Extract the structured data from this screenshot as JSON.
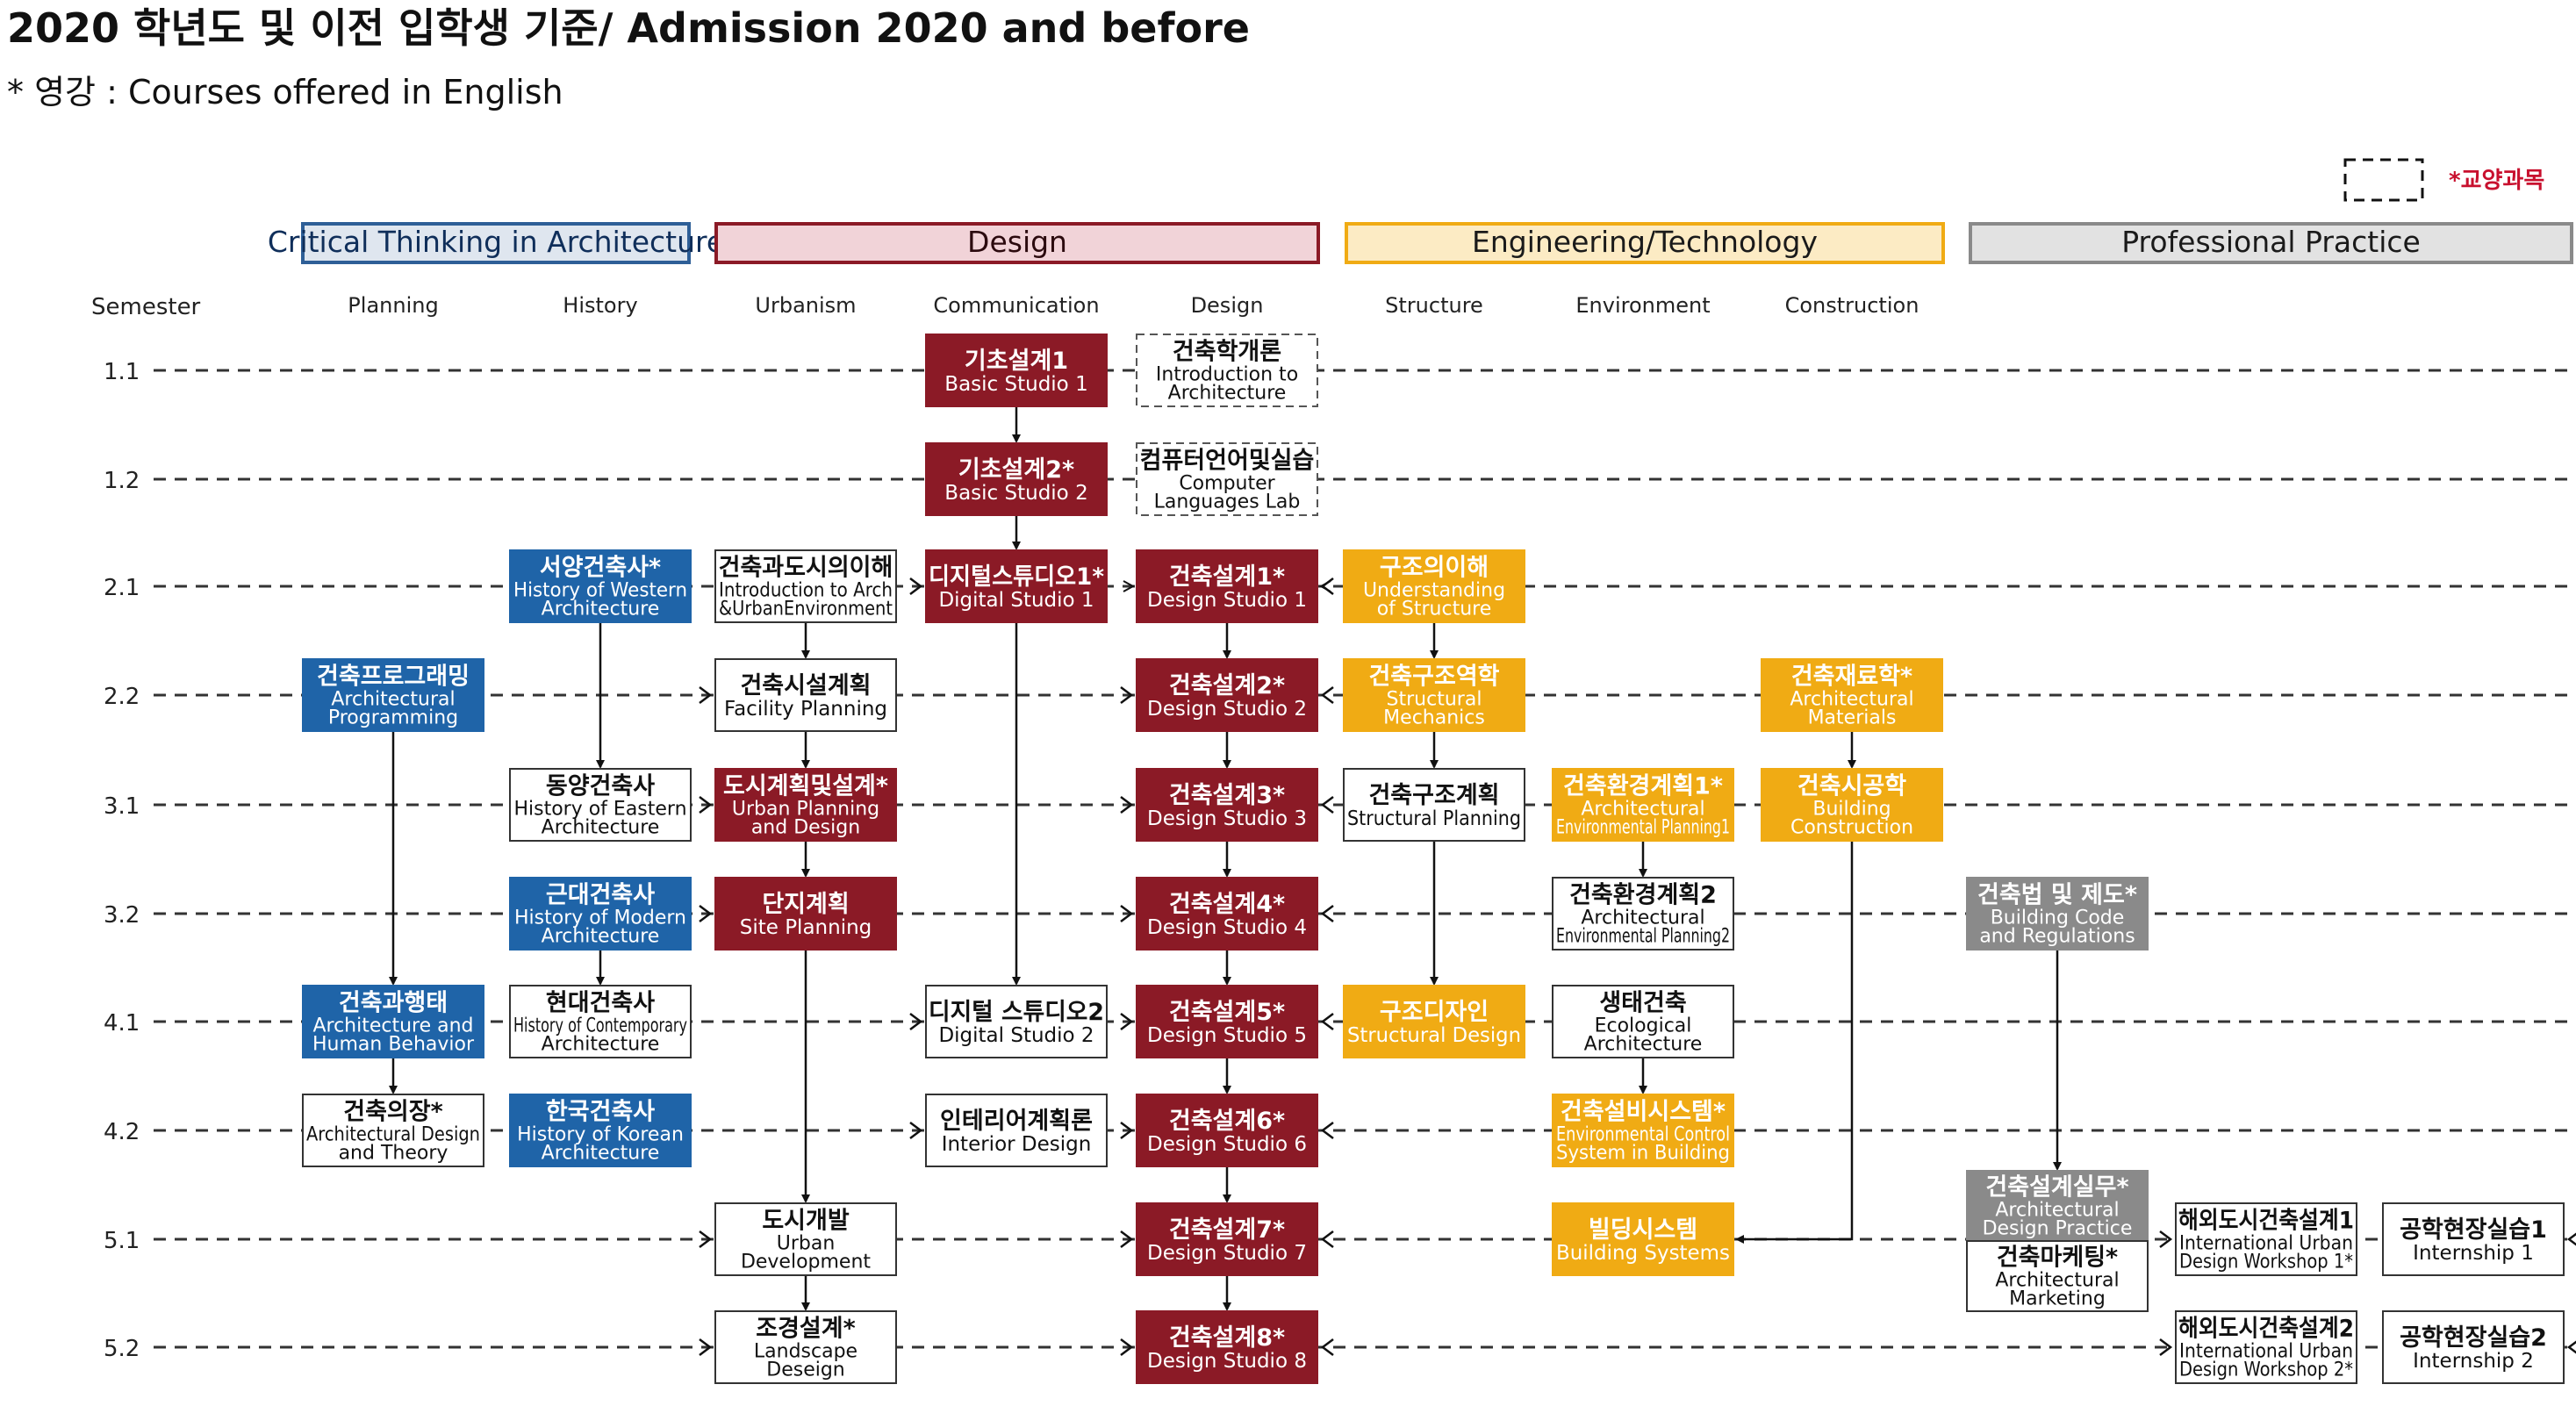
{
  "title": "2020 학년도 및 이전 입학생 기준/ Admission 2020 and before",
  "subtitle": "* 영강 : Courses offered in English",
  "legend": {
    "label": "*교양과목"
  },
  "colors": {
    "blue": "#1f64a8",
    "red": "#8b1a26",
    "yellow": "#f0ab14",
    "gray": "#8a8a8a"
  },
  "semester_label": "Semester",
  "categories": [
    {
      "label": "Critical Thinking in Architecture",
      "style": "blue"
    },
    {
      "label": "Design",
      "style": "red"
    },
    {
      "label": "Engineering/Technology",
      "style": "yellow"
    },
    {
      "label": "Professional Practice",
      "style": "gray"
    }
  ],
  "columns": [
    {
      "key": "planning",
      "label": "Planning"
    },
    {
      "key": "history",
      "label": "History"
    },
    {
      "key": "urbanism",
      "label": "Urbanism"
    },
    {
      "key": "communication",
      "label": "Communication"
    },
    {
      "key": "design",
      "label": "Design"
    },
    {
      "key": "structure",
      "label": "Structure"
    },
    {
      "key": "environment",
      "label": "Environment"
    },
    {
      "key": "construction",
      "label": "Construction"
    },
    {
      "key": "practice",
      "label": ""
    },
    {
      "key": "intl",
      "label": ""
    },
    {
      "key": "intern",
      "label": ""
    }
  ],
  "semesters": [
    "1.1",
    "1.2",
    "2.1",
    "2.2",
    "3.1",
    "3.2",
    "4.1",
    "4.2",
    "5.1",
    "5.2"
  ],
  "courses": [
    {
      "id": "basic1",
      "col": "communication",
      "sem": "1.1",
      "style": "red",
      "ko": "기초설계1",
      "en": [
        "Basic Studio 1"
      ]
    },
    {
      "id": "intro",
      "col": "design",
      "sem": "1.1",
      "style": "dashed",
      "ko": "건축학개론",
      "en": [
        "Introduction to",
        "Architecture"
      ]
    },
    {
      "id": "basic2",
      "col": "communication",
      "sem": "1.2",
      "style": "red",
      "ko": "기초설계2*",
      "en": [
        "Basic Studio 2"
      ]
    },
    {
      "id": "comp",
      "col": "design",
      "sem": "1.2",
      "style": "dashed",
      "ko": "컴퓨터언어및실습",
      "en": [
        "Computer",
        "Languages Lab"
      ]
    },
    {
      "id": "western",
      "col": "history",
      "sem": "2.1",
      "style": "blue",
      "ko": "서양건축사*",
      "en": [
        "History of Western",
        "Architecture"
      ]
    },
    {
      "id": "intro_urban",
      "col": "urbanism",
      "sem": "2.1",
      "style": "white",
      "ko": "건축과도시의이해",
      "en": [
        "Introduction to Arch",
        "&UrbanEnvironment"
      ]
    },
    {
      "id": "digital1",
      "col": "communication",
      "sem": "2.1",
      "style": "red",
      "ko": "디지털스튜디오1*",
      "en": [
        "Digital Studio 1"
      ]
    },
    {
      "id": "design1",
      "col": "design",
      "sem": "2.1",
      "style": "red",
      "ko": "건축설계1*",
      "en": [
        "Design Studio 1"
      ]
    },
    {
      "id": "under_struct",
      "col": "structure",
      "sem": "2.1",
      "style": "yellow",
      "ko": "구조의이해",
      "en": [
        "Understanding",
        "of Structure"
      ]
    },
    {
      "id": "programming",
      "col": "planning",
      "sem": "2.2",
      "style": "blue",
      "ko": "건축프로그래밍",
      "en": [
        "Architectural",
        "Programming"
      ]
    },
    {
      "id": "facility",
      "col": "urbanism",
      "sem": "2.2",
      "style": "white",
      "ko": "건축시설계획",
      "en": [
        "Facility Planning"
      ]
    },
    {
      "id": "design2",
      "col": "design",
      "sem": "2.2",
      "style": "red",
      "ko": "건축설계2*",
      "en": [
        "Design Studio 2"
      ]
    },
    {
      "id": "struct_mech",
      "col": "structure",
      "sem": "2.2",
      "style": "yellow",
      "ko": "건축구조역학",
      "en": [
        "Structural",
        "Mechanics"
      ]
    },
    {
      "id": "materials",
      "col": "construction",
      "sem": "2.2",
      "style": "yellow",
      "ko": "건축재료학*",
      "en": [
        "Architectural",
        "Materials"
      ]
    },
    {
      "id": "eastern",
      "col": "history",
      "sem": "3.1",
      "style": "white",
      "ko": "동양건축사",
      "en": [
        "History of Eastern",
        "Architecture"
      ]
    },
    {
      "id": "urban_plan",
      "col": "urbanism",
      "sem": "3.1",
      "style": "red",
      "ko": "도시계획및설계*",
      "en": [
        "Urban Planning",
        "and Design"
      ]
    },
    {
      "id": "design3",
      "col": "design",
      "sem": "3.1",
      "style": "red",
      "ko": "건축설계3*",
      "en": [
        "Design Studio 3"
      ]
    },
    {
      "id": "struct_plan",
      "col": "structure",
      "sem": "3.1",
      "style": "white",
      "ko": "건축구조계획",
      "en": [
        "Structural Planning"
      ]
    },
    {
      "id": "env1",
      "col": "environment",
      "sem": "3.1",
      "style": "yellow",
      "ko": "건축환경계획1*",
      "en": [
        "Architectural",
        "Environmental Planning1"
      ]
    },
    {
      "id": "build_const",
      "col": "construction",
      "sem": "3.1",
      "style": "yellow",
      "ko": "건축시공학",
      "en": [
        "Building",
        "Construction"
      ]
    },
    {
      "id": "modern",
      "col": "history",
      "sem": "3.2",
      "style": "blue",
      "ko": "근대건축사",
      "en": [
        "History of Modern",
        "Architecture"
      ]
    },
    {
      "id": "site",
      "col": "urbanism",
      "sem": "3.2",
      "style": "red",
      "ko": "단지계획",
      "en": [
        "Site Planning"
      ]
    },
    {
      "id": "design4",
      "col": "design",
      "sem": "3.2",
      "style": "red",
      "ko": "건축설계4*",
      "en": [
        "Design Studio 4"
      ]
    },
    {
      "id": "env2",
      "col": "environment",
      "sem": "3.2",
      "style": "white",
      "ko": "건축환경계획2",
      "en": [
        "Architectural",
        "Environmental Planning2"
      ]
    },
    {
      "id": "code",
      "col": "practice",
      "sem": "3.2",
      "style": "gray",
      "ko": "건축법 및 제도*",
      "en": [
        "Building Code",
        "and Regulations"
      ]
    },
    {
      "id": "behavior",
      "col": "planning",
      "sem": "4.1",
      "style": "blue",
      "ko": "건축과행태",
      "en": [
        "Architecture and",
        "Human Behavior"
      ]
    },
    {
      "id": "contemporary",
      "col": "history",
      "sem": "4.1",
      "style": "white",
      "ko": "현대건축사",
      "en": [
        "History of Contemporary",
        "Architecture"
      ]
    },
    {
      "id": "digital2",
      "col": "communication",
      "sem": "4.1",
      "style": "white",
      "ko": "디지털 스튜디오2",
      "en": [
        "Digital Studio 2"
      ]
    },
    {
      "id": "design5",
      "col": "design",
      "sem": "4.1",
      "style": "red",
      "ko": "건축설계5*",
      "en": [
        "Design Studio 5"
      ]
    },
    {
      "id": "struct_design",
      "col": "structure",
      "sem": "4.1",
      "style": "yellow",
      "ko": "구조디자인",
      "en": [
        "Structural Design"
      ]
    },
    {
      "id": "ecological",
      "col": "environment",
      "sem": "4.1",
      "style": "white",
      "ko": "생태건축",
      "en": [
        "Ecological",
        "Architecture"
      ]
    },
    {
      "id": "theory",
      "col": "planning",
      "sem": "4.2",
      "style": "white",
      "ko": "건축의장*",
      "en": [
        "Architectural Design",
        "and Theory"
      ]
    },
    {
      "id": "korean",
      "col": "history",
      "sem": "4.2",
      "style": "blue",
      "ko": "한국건축사",
      "en": [
        "History of Korean",
        "Architecture"
      ]
    },
    {
      "id": "interior",
      "col": "communication",
      "sem": "4.2",
      "style": "white",
      "ko": "인테리어계획론",
      "en": [
        "Interior Design"
      ]
    },
    {
      "id": "design6",
      "col": "design",
      "sem": "4.2",
      "style": "red",
      "ko": "건축설계6*",
      "en": [
        "Design Studio 6"
      ]
    },
    {
      "id": "env_control",
      "col": "environment",
      "sem": "4.2",
      "style": "yellow",
      "ko": "건축설비시스템*",
      "en": [
        "Environmental Control",
        "System in Building"
      ]
    },
    {
      "id": "urban_dev",
      "col": "urbanism",
      "sem": "5.1",
      "style": "white",
      "ko": "도시개발",
      "en": [
        "Urban",
        "Development"
      ]
    },
    {
      "id": "design7",
      "col": "design",
      "sem": "5.1",
      "style": "red",
      "ko": "건축설계7*",
      "en": [
        "Design Studio 7"
      ]
    },
    {
      "id": "build_sys",
      "col": "environment",
      "sem": "5.1",
      "style": "yellow",
      "ko": "빌딩시스템",
      "en": [
        "Building Systems"
      ]
    },
    {
      "id": "intl1",
      "col": "intl",
      "sem": "5.1",
      "style": "white",
      "ko": "해외도시건축설계1",
      "en": [
        "International Urban",
        "Design Workshop 1*"
      ]
    },
    {
      "id": "intern1",
      "col": "intern",
      "sem": "5.1",
      "style": "white",
      "ko": "공학현장실습1",
      "en": [
        "Internship 1"
      ]
    },
    {
      "id": "landscape",
      "col": "urbanism",
      "sem": "5.2",
      "style": "white",
      "ko": "조경설계*",
      "en": [
        "Landscape",
        "Deseign"
      ]
    },
    {
      "id": "design8",
      "col": "design",
      "sem": "5.2",
      "style": "red",
      "ko": "건축설계8*",
      "en": [
        "Design Studio 8"
      ]
    },
    {
      "id": "intl2",
      "col": "intl",
      "sem": "5.2",
      "style": "white",
      "ko": "해외도시건축설계2",
      "en": [
        "International Urban",
        "Design Workshop 2*"
      ]
    },
    {
      "id": "intern2",
      "col": "intern",
      "sem": "5.2",
      "style": "white",
      "ko": "공학현장실습2",
      "en": [
        "Internship 2"
      ]
    }
  ],
  "practice_combo": {
    "top": {
      "ko": "건축설계실무*",
      "en": [
        "Architectural",
        "Design Practice"
      ]
    },
    "bottom": {
      "ko": "건축마케팅*",
      "en": [
        "Architectural",
        "Marketing"
      ]
    }
  },
  "edges": [
    [
      "basic1",
      "basic2"
    ],
    [
      "basic2",
      "digital1"
    ],
    [
      "digital1",
      "digital2"
    ],
    [
      "design1",
      "design2"
    ],
    [
      "design2",
      "design3"
    ],
    [
      "design3",
      "design4"
    ],
    [
      "design4",
      "design5"
    ],
    [
      "design5",
      "design6"
    ],
    [
      "design6",
      "design7"
    ],
    [
      "design7",
      "design8"
    ],
    [
      "western",
      "eastern"
    ],
    [
      "modern",
      "contemporary"
    ],
    [
      "programming",
      "behavior"
    ],
    [
      "behavior",
      "theory"
    ],
    [
      "intro_urban",
      "facility"
    ],
    [
      "facility",
      "urban_plan"
    ],
    [
      "urban_plan",
      "site"
    ],
    [
      "site",
      "urban_dev"
    ],
    [
      "urban_dev",
      "landscape"
    ],
    [
      "under_struct",
      "struct_mech"
    ],
    [
      "struct_mech",
      "struct_plan"
    ],
    [
      "struct_plan",
      "struct_design"
    ],
    [
      "env1",
      "env2"
    ],
    [
      "ecological",
      "env_control"
    ],
    [
      "materials",
      "build_const"
    ],
    [
      "code",
      "practice_combo"
    ]
  ],
  "side_arrows": [
    {
      "from": "under_struct",
      "to": "design1"
    },
    {
      "from": "intro_urban",
      "to": "design1"
    },
    {
      "from": "build_const",
      "to": "build_sys"
    }
  ]
}
